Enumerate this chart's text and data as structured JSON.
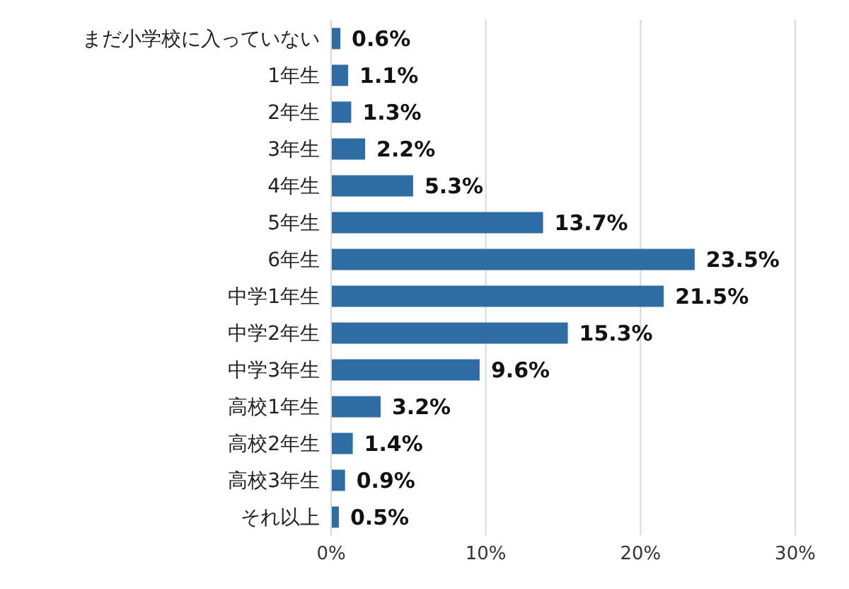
{
  "chart_data": {
    "type": "bar",
    "orientation": "horizontal",
    "categories": [
      "まだ小学校に入っていない",
      "1年生",
      "2年生",
      "3年生",
      "4年生",
      "5年生",
      "6年生",
      "中学1年生",
      "中学2年生",
      "中学3年生",
      "高校1年生",
      "高校2年生",
      "高校3年生",
      "それ以上"
    ],
    "values": [
      0.6,
      1.1,
      1.3,
      2.2,
      5.3,
      13.7,
      23.5,
      21.5,
      15.3,
      9.6,
      3.2,
      1.4,
      0.9,
      0.5
    ],
    "value_labels": [
      "0.6%",
      "1.1%",
      "1.3%",
      "2.2%",
      "5.3%",
      "13.7%",
      "23.5%",
      "21.5%",
      "15.3%",
      "9.6%",
      "3.2%",
      "1.4%",
      "0.9%",
      "0.5%"
    ],
    "color": "#2e6ca4",
    "xlim": [
      0,
      30
    ],
    "xticks": [
      {
        "value": 0,
        "label": "0%"
      },
      {
        "value": 10,
        "label": "10%"
      },
      {
        "value": 20,
        "label": "20%"
      },
      {
        "value": 30,
        "label": "30%"
      }
    ],
    "grid": "x"
  }
}
